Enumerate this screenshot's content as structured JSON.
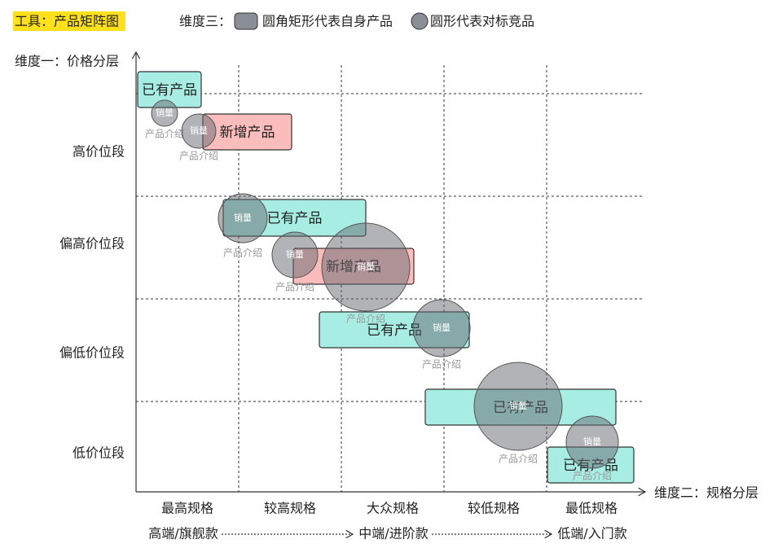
{
  "header": {
    "tool": "工具：产品矩阵图",
    "legend": {
      "title": "维度三：",
      "self": "圆角矩形代表自身产品",
      "competitor": "圆形代表对标竞品"
    }
  },
  "axes": {
    "y_title": "维度一：价格分层",
    "y_levels": [
      "高价位段",
      "偏高价位段",
      "偏低价位段",
      "低价位段"
    ],
    "x_title": "维度二：规格分层",
    "x_levels": [
      "最高规格",
      "较高规格",
      "大众规格",
      "较低规格",
      "最低规格"
    ],
    "segments": [
      "高端/旗舰款",
      "中端/进阶款",
      "低端/入门款"
    ]
  },
  "products": [
    {
      "label": "已有产品",
      "color": "#a8ede3"
    },
    {
      "label": "新增产品",
      "color": "#fbbcbc"
    },
    {
      "label": "已有产品",
      "color": "#a8ede3"
    },
    {
      "label": "新增产品",
      "color": "#fbbcbc"
    },
    {
      "label": "已有产品",
      "color": "#a8ede3"
    },
    {
      "label": "已有产品",
      "color": "#a8ede3"
    },
    {
      "label": "已有产品",
      "color": "#a8ede3"
    }
  ],
  "competitors": [
    {
      "sales": "销量",
      "intro": "产品介绍"
    },
    {
      "sales": "销量",
      "intro": "产品介绍"
    },
    {
      "sales": "销量",
      "intro": "产品介绍"
    },
    {
      "sales": "销量",
      "intro": "产品介绍"
    },
    {
      "sales": "销量",
      "intro": "产品介绍"
    },
    {
      "sales": "销量",
      "intro": "产品介绍"
    },
    {
      "sales": "销量",
      "intro": "产品介绍"
    },
    {
      "sales": "销量",
      "intro": "产品介绍"
    }
  ]
}
